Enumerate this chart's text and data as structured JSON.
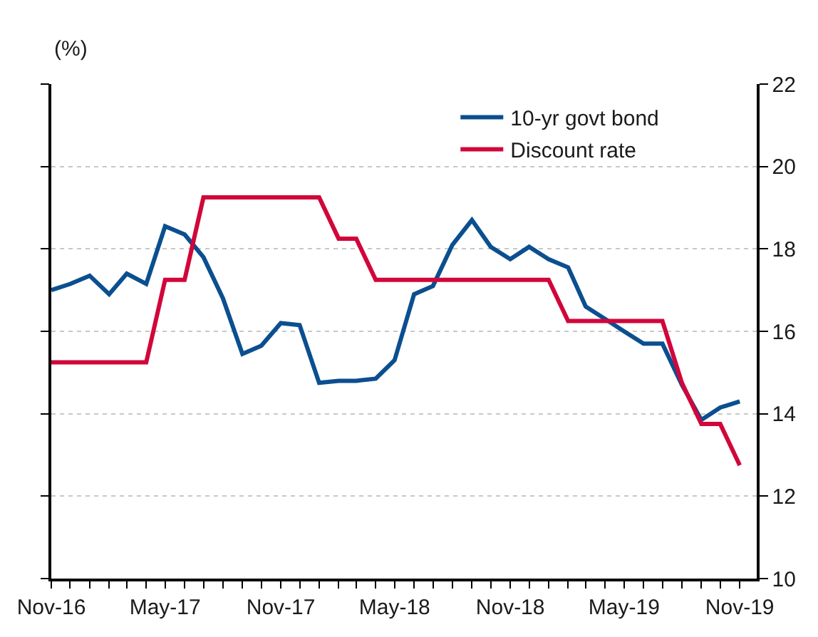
{
  "chart_data": {
    "type": "line",
    "ylabel": "(%)",
    "x": [
      "2016-11",
      "2016-12",
      "2017-01",
      "2017-02",
      "2017-03",
      "2017-04",
      "2017-05",
      "2017-06",
      "2017-07",
      "2017-08",
      "2017-09",
      "2017-10",
      "2017-11",
      "2017-12",
      "2018-01",
      "2018-02",
      "2018-03",
      "2018-04",
      "2018-05",
      "2018-06",
      "2018-07",
      "2018-08",
      "2018-09",
      "2018-10",
      "2018-11",
      "2018-12",
      "2019-01",
      "2019-02",
      "2019-03",
      "2019-04",
      "2019-05",
      "2019-06",
      "2019-07",
      "2019-08",
      "2019-09",
      "2019-10",
      "2019-11"
    ],
    "series": [
      {
        "name": "10-yr govt bond",
        "color": "#0b4f8f",
        "values": [
          17.0,
          17.15,
          17.35,
          16.9,
          17.4,
          17.15,
          18.55,
          18.35,
          17.8,
          16.8,
          15.45,
          15.65,
          16.2,
          16.15,
          14.75,
          14.8,
          14.8,
          14.85,
          15.3,
          16.9,
          17.1,
          18.1,
          18.7,
          18.05,
          17.75,
          18.05,
          17.75,
          17.55,
          16.6,
          16.3,
          16.0,
          15.7,
          15.7,
          14.7,
          13.85,
          14.15,
          14.3
        ]
      },
      {
        "name": "Discount rate",
        "color": "#d1063a",
        "values": [
          15.25,
          15.25,
          15.25,
          15.25,
          15.25,
          15.25,
          17.25,
          17.25,
          19.25,
          19.25,
          19.25,
          19.25,
          19.25,
          19.25,
          19.25,
          18.25,
          18.25,
          17.25,
          17.25,
          17.25,
          17.25,
          17.25,
          17.25,
          17.25,
          17.25,
          17.25,
          17.25,
          16.25,
          16.25,
          16.25,
          16.25,
          16.25,
          16.25,
          14.75,
          13.75,
          13.75,
          12.75
        ]
      }
    ],
    "xlim": [
      "2016-11",
      "2019-11-28"
    ],
    "xticks": [
      {
        "value": "2016-11",
        "label": "Nov-16"
      },
      {
        "value": "2016-12",
        "label": null
      },
      {
        "value": "2017-01",
        "label": null
      },
      {
        "value": "2017-02",
        "label": null
      },
      {
        "value": "2017-03",
        "label": null
      },
      {
        "value": "2017-04",
        "label": null
      },
      {
        "value": "2017-05",
        "label": "May-17"
      },
      {
        "value": "2017-06",
        "label": null
      },
      {
        "value": "2017-07",
        "label": null
      },
      {
        "value": "2017-08",
        "label": null
      },
      {
        "value": "2017-09",
        "label": null
      },
      {
        "value": "2017-10",
        "label": null
      },
      {
        "value": "2017-11",
        "label": "Nov-17"
      },
      {
        "value": "2017-12",
        "label": null
      },
      {
        "value": "2018-01",
        "label": null
      },
      {
        "value": "2018-02",
        "label": null
      },
      {
        "value": "2018-03",
        "label": null
      },
      {
        "value": "2018-04",
        "label": null
      },
      {
        "value": "2018-05",
        "label": "May-18"
      },
      {
        "value": "2018-06",
        "label": null
      },
      {
        "value": "2018-07",
        "label": null
      },
      {
        "value": "2018-08",
        "label": null
      },
      {
        "value": "2018-09",
        "label": null
      },
      {
        "value": "2018-10",
        "label": null
      },
      {
        "value": "2018-11",
        "label": "Nov-18"
      },
      {
        "value": "2018-12",
        "label": null
      },
      {
        "value": "2019-01",
        "label": null
      },
      {
        "value": "2019-02",
        "label": null
      },
      {
        "value": "2019-03",
        "label": null
      },
      {
        "value": "2019-04",
        "label": null
      },
      {
        "value": "2019-05",
        "label": "May-19"
      },
      {
        "value": "2019-06",
        "label": null
      },
      {
        "value": "2019-07",
        "label": null
      },
      {
        "value": "2019-08",
        "label": null
      },
      {
        "value": "2019-09",
        "label": null
      },
      {
        "value": "2019-10",
        "label": null
      },
      {
        "value": "2019-11",
        "label": "Nov-19"
      }
    ],
    "ylim": [
      10,
      22
    ],
    "yticks": [
      10,
      12,
      14,
      16,
      18,
      20,
      22
    ],
    "grid": "y",
    "legend": "top right",
    "marker": "none",
    "line_style": "solid"
  }
}
